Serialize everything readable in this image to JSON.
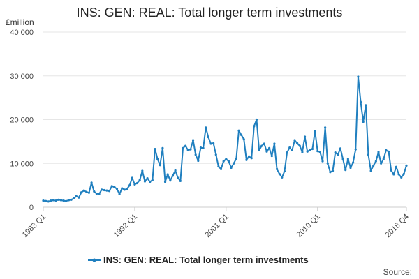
{
  "chart_data": {
    "type": "line",
    "title": "INS: GEN: REAL: Total longer term investments",
    "ylabel": "£million",
    "xlabel": "",
    "ylim": [
      0,
      40000
    ],
    "yticks": [
      0,
      10000,
      20000,
      30000,
      40000
    ],
    "ytick_labels": [
      "0",
      "10 000",
      "20 000",
      "30 000",
      "40 000"
    ],
    "xticks": [
      {
        "index": 0,
        "label": "1983 Q1"
      },
      {
        "index": 36,
        "label": "1992 Q1"
      },
      {
        "index": 72,
        "label": "2001 Q1"
      },
      {
        "index": 108,
        "label": "2010 Q1"
      },
      {
        "index": 143,
        "label": "2018 Q4"
      }
    ],
    "x_start": "1983 Q1",
    "x_end": "2018 Q4",
    "series": [
      {
        "name": "INS: GEN: REAL: Total longer term investments",
        "color": "#1f7fbf",
        "values": [
          1500,
          1400,
          1300,
          1500,
          1600,
          1500,
          1700,
          1600,
          1500,
          1400,
          1600,
          1700,
          2000,
          2500,
          2200,
          3400,
          3800,
          3500,
          3300,
          5600,
          3600,
          3100,
          3000,
          4000,
          3900,
          3800,
          3700,
          4800,
          4600,
          4200,
          3000,
          4300,
          4000,
          4200,
          5000,
          6700,
          5200,
          5500,
          6200,
          8300,
          5900,
          6600,
          5800,
          6200,
          13300,
          11000,
          9600,
          13500,
          5800,
          7500,
          6100,
          7200,
          8400,
          6700,
          6000,
          13500,
          14000,
          13000,
          13200,
          15300,
          12000,
          10600,
          13600,
          13500,
          18200,
          16000,
          14500,
          14600,
          12000,
          9300,
          8700,
          10500,
          11000,
          10500,
          9000,
          10000,
          11100,
          17500,
          16500,
          15500,
          10800,
          11600,
          11200,
          18500,
          20000,
          13000,
          14000,
          14500,
          12700,
          13500,
          11700,
          14500,
          8700,
          7600,
          6800,
          8200,
          12500,
          13600,
          13000,
          15300,
          14600,
          14000,
          12600,
          16100,
          12700,
          13100,
          13300,
          17400,
          12800,
          12600,
          10500,
          18200,
          10000,
          8000,
          8300,
          12500,
          12000,
          13400,
          11000,
          8500,
          11000,
          9000,
          10200,
          13200,
          29800,
          24000,
          19500,
          23300,
          12000,
          8300,
          9500,
          10500,
          12600,
          10000,
          11000,
          13000,
          12700,
          8400,
          7500,
          9200,
          7500,
          6800,
          7600,
          9500
        ]
      }
    ],
    "legend_position": "bottom"
  },
  "source_label": "Source:"
}
